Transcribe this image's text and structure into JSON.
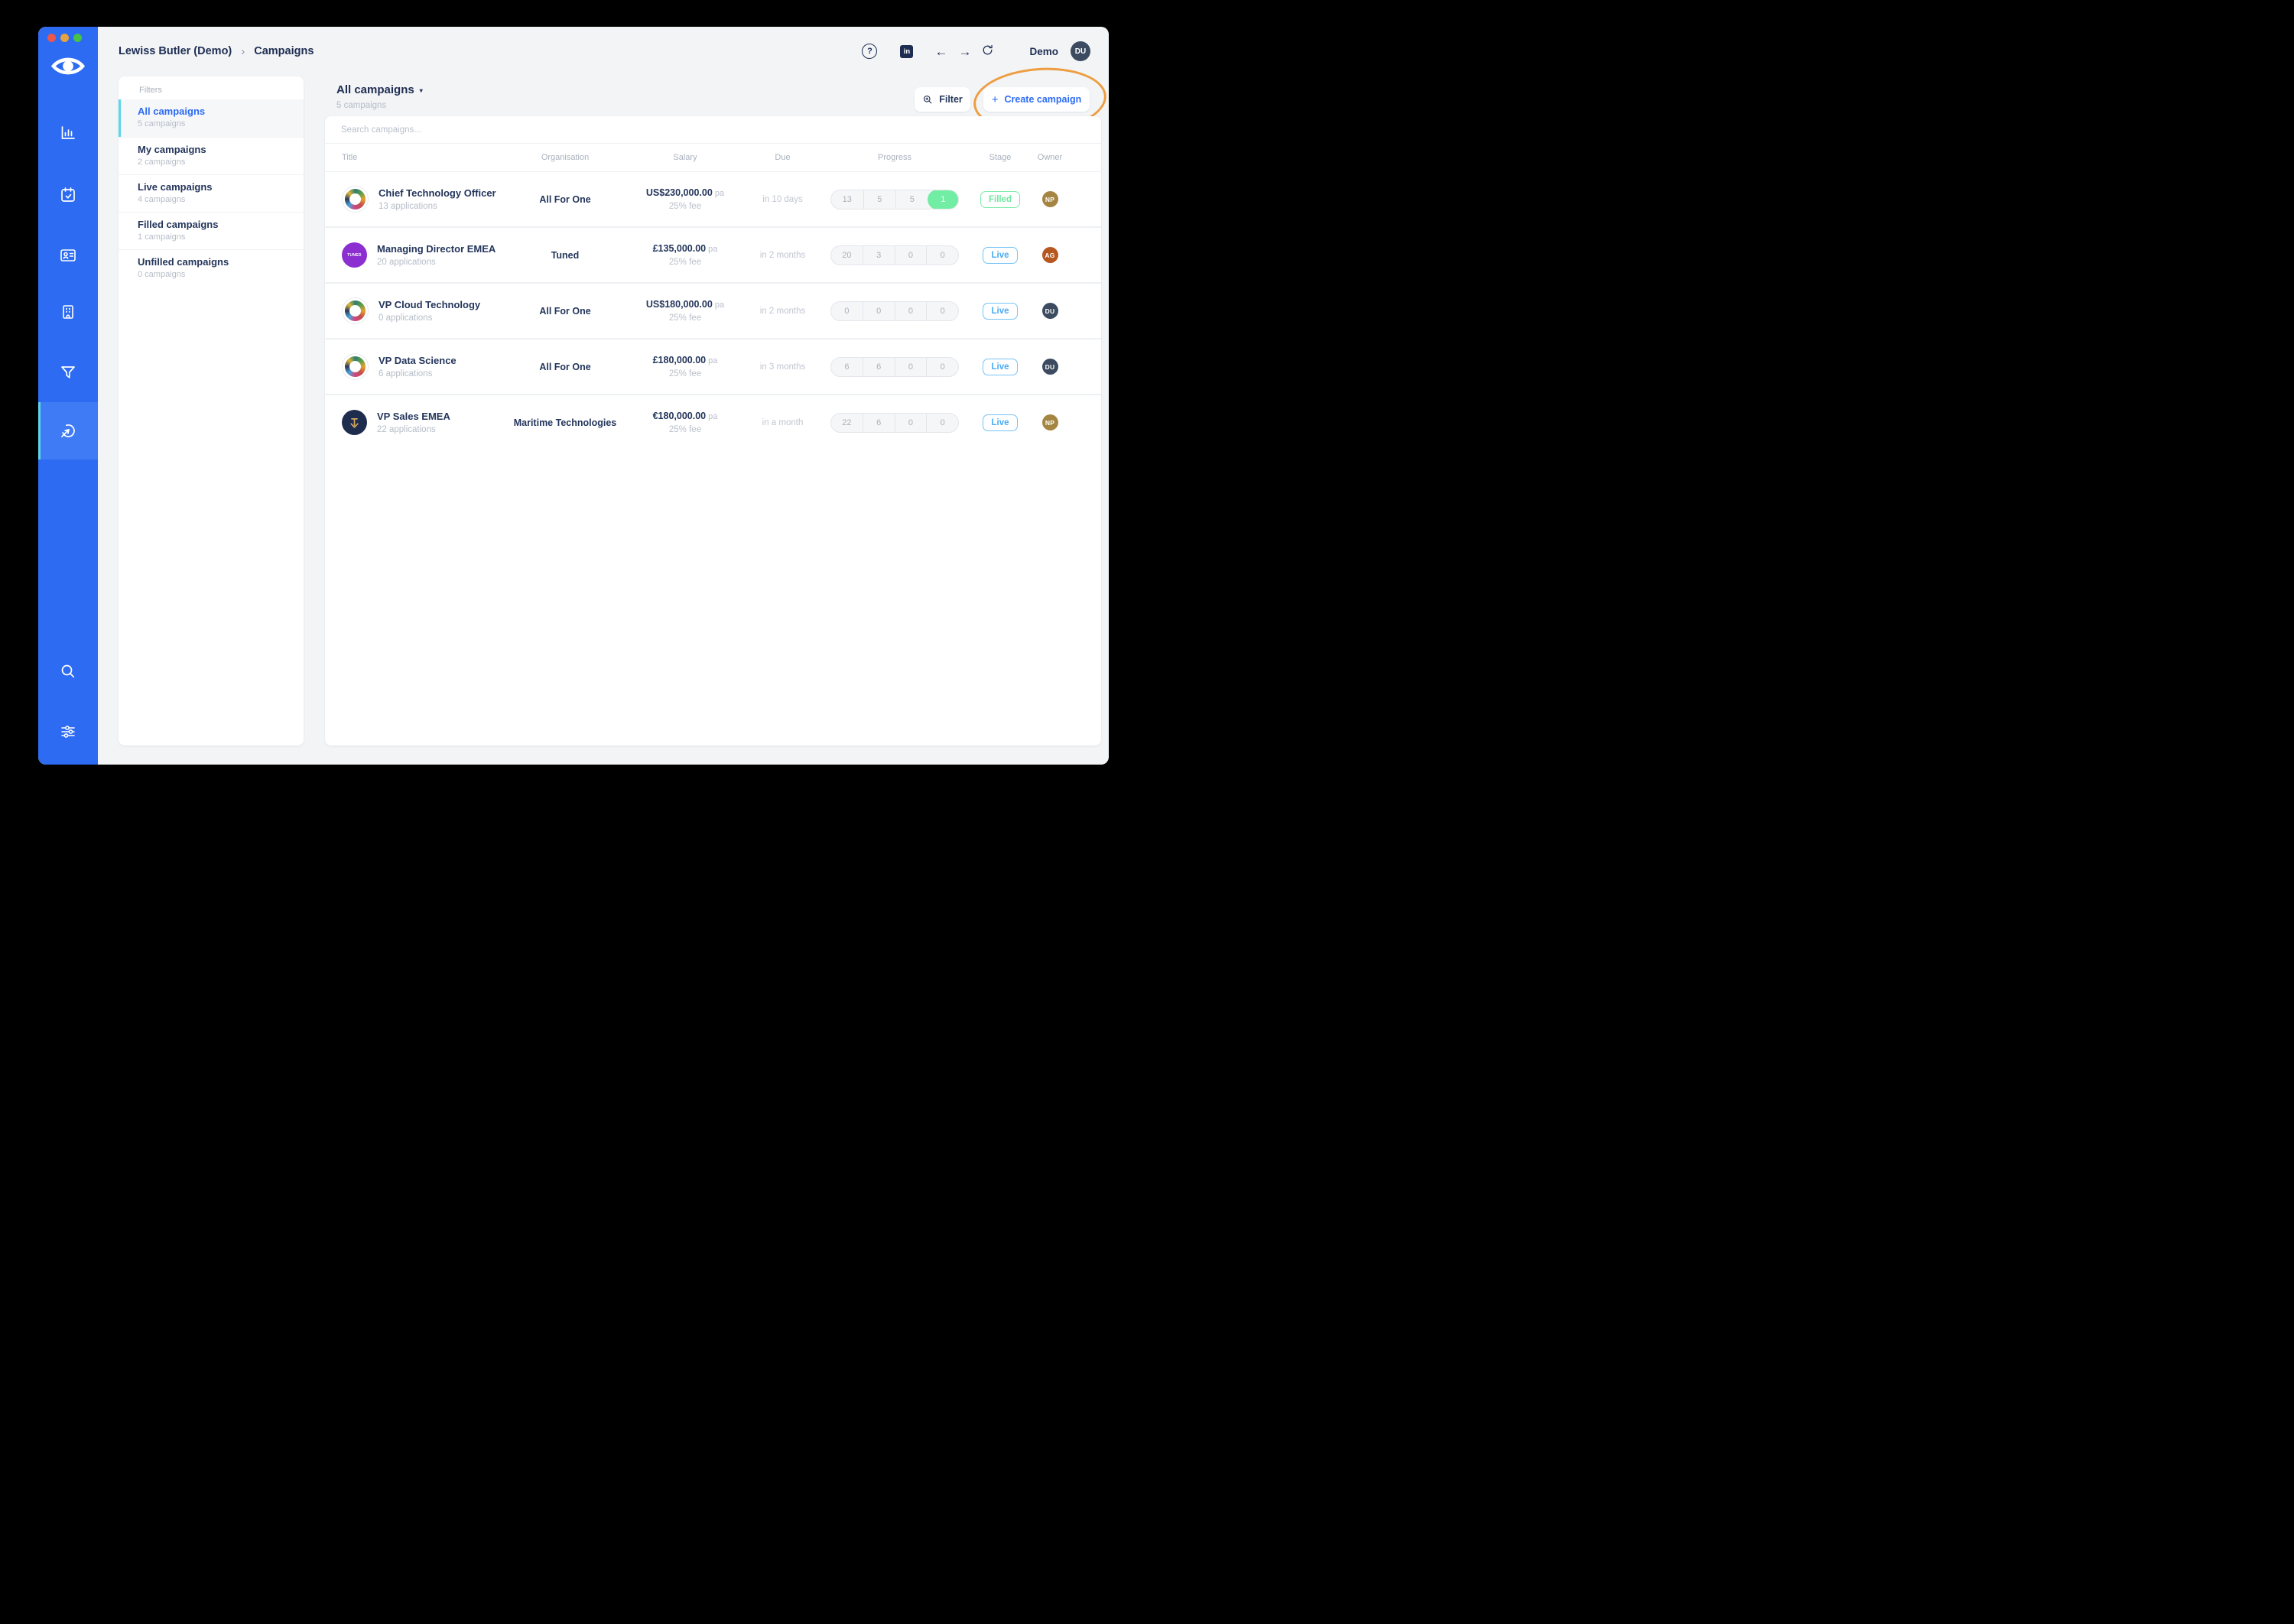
{
  "colors": {
    "sidebar_blue": "#2d6bf2",
    "sidebar_active": "#3e7bf4",
    "accent_cyan": "#5cd6e9",
    "navy": "#1e2d52",
    "link_blue": "#2c6cf4",
    "mint_green": "#72eda4",
    "live_blue": "#48aaf4",
    "annotation_orange": "#ee9d41"
  },
  "window": {
    "traffic_lights": [
      "close",
      "minimize",
      "zoom"
    ]
  },
  "sidebar": {
    "icons": [
      "eye-logo",
      "bar-chart",
      "calendar-check",
      "contact-card",
      "building",
      "funnel",
      "campaign-target",
      "search",
      "sliders"
    ],
    "active_icon": "campaign-target"
  },
  "breadcrumb": {
    "items": [
      "Lewiss Butler (Demo)",
      "Campaigns"
    ],
    "separator": "›"
  },
  "topbar": {
    "help_glyph": "?",
    "linkedin_glyph": "in",
    "back_glyph": "←",
    "forward_glyph": "→",
    "demo_label": "Demo",
    "user_initials": "DU",
    "user_color": "#3c4b60"
  },
  "filters": {
    "title": "Filters",
    "items": [
      {
        "label": "All campaigns",
        "sublabel": "5 campaigns",
        "active": true
      },
      {
        "label": "My campaigns",
        "sublabel": "2 campaigns",
        "active": false
      },
      {
        "label": "Live campaigns",
        "sublabel": "4 campaigns",
        "active": false
      },
      {
        "label": "Filled campaigns",
        "sublabel": "1 campaigns",
        "active": false
      },
      {
        "label": "Unfilled campaigns",
        "sublabel": "0 campaigns",
        "active": false
      }
    ]
  },
  "list": {
    "title": "All campaigns",
    "title_caret": "▾",
    "subtitle": "5 campaigns",
    "filter_button": "Filter",
    "create_plus": "+",
    "create_button": "Create campaign",
    "search_placeholder": "Search campaigns..."
  },
  "table": {
    "columns": [
      "Title",
      "Organisation",
      "Salary",
      "Due",
      "Progress",
      "Stage",
      "Owner"
    ],
    "logo_text_tuned": "TUNED",
    "rows": [
      {
        "title": "Chief Technology Officer",
        "applications": "13 applications",
        "organisation": "All For One",
        "org_logo": "allforone",
        "salary": "US$230,000.00",
        "salary_suffix": " pa",
        "fee": "25% fee",
        "due": "in 10 days",
        "progress": [
          "13",
          "5",
          "5",
          "1"
        ],
        "progress_green_last": true,
        "stage": "Filled",
        "stage_type": "filled",
        "owner": {
          "initials": "NP",
          "color": "#a58542"
        }
      },
      {
        "title": "Managing Director EMEA",
        "applications": "20 applications",
        "organisation": "Tuned",
        "org_logo": "tuned",
        "salary": "£135,000.00",
        "salary_suffix": " pa",
        "fee": "25% fee",
        "due": "in 2 months",
        "progress": [
          "20",
          "3",
          "0",
          "0"
        ],
        "progress_green_last": false,
        "stage": "Live",
        "stage_type": "live",
        "owner": {
          "initials": "AG",
          "color": "#b5571f"
        }
      },
      {
        "title": "VP Cloud Technology",
        "applications": "0 applications",
        "organisation": "All For One",
        "org_logo": "allforone",
        "salary": "US$180,000.00",
        "salary_suffix": " pa",
        "fee": "25% fee",
        "due": "in 2 months",
        "progress": [
          "0",
          "0",
          "0",
          "0"
        ],
        "progress_green_last": false,
        "stage": "Live",
        "stage_type": "live",
        "owner": {
          "initials": "DU",
          "color": "#3c4b60"
        }
      },
      {
        "title": "VP Data Science",
        "applications": "6 applications",
        "organisation": "All For One",
        "org_logo": "allforone",
        "salary": "£180,000.00",
        "salary_suffix": " pa",
        "fee": "25% fee",
        "due": "in 3 months",
        "progress": [
          "6",
          "6",
          "0",
          "0"
        ],
        "progress_green_last": false,
        "stage": "Live",
        "stage_type": "live",
        "owner": {
          "initials": "DU",
          "color": "#3c4b60"
        }
      },
      {
        "title": "VP Sales EMEA",
        "applications": "22 applications",
        "organisation": "Maritime Technologies",
        "org_logo": "maritime",
        "salary": "€180,000.00",
        "salary_suffix": " pa",
        "fee": "25% fee",
        "due": "in a month",
        "progress": [
          "22",
          "6",
          "0",
          "0"
        ],
        "progress_green_last": false,
        "stage": "Live",
        "stage_type": "live",
        "owner": {
          "initials": "NP",
          "color": "#a58542"
        }
      }
    ]
  }
}
